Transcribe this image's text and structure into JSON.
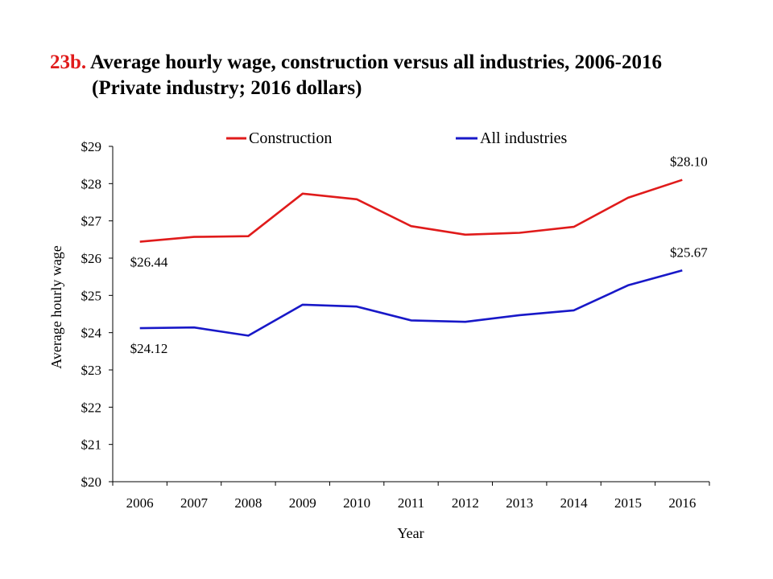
{
  "title": {
    "number": "23b.",
    "line1": "Average hourly wage, construction versus all industries, 2006-2016",
    "line2": "(Private industry; 2016 dollars)"
  },
  "chart_data": {
    "type": "line",
    "x": [
      "2006",
      "2007",
      "2008",
      "2009",
      "2010",
      "2011",
      "2012",
      "2013",
      "2014",
      "2015",
      "2016"
    ],
    "series": [
      {
        "name": "Construction",
        "color": "#e01b1b",
        "values": [
          26.44,
          26.57,
          26.59,
          27.73,
          27.58,
          26.86,
          26.63,
          26.68,
          26.84,
          27.62,
          28.1
        ]
      },
      {
        "name": "All industries",
        "color": "#1818c8",
        "values": [
          24.12,
          24.14,
          23.92,
          24.75,
          24.7,
          24.33,
          24.29,
          24.47,
          24.6,
          25.27,
          25.67
        ]
      }
    ],
    "data_labels": [
      {
        "series": 0,
        "point": 0,
        "text": "$26.44"
      },
      {
        "series": 0,
        "point": 10,
        "text": "$28.10"
      },
      {
        "series": 1,
        "point": 0,
        "text": "$24.12"
      },
      {
        "series": 1,
        "point": 10,
        "text": "$25.67"
      }
    ],
    "ylim": [
      20,
      29
    ],
    "yticks": [
      "$20",
      "$21",
      "$22",
      "$23",
      "$24",
      "$25",
      "$26",
      "$27",
      "$28",
      "$29"
    ],
    "xlabel": "Year",
    "ylabel": "Average  hourly wage",
    "legend_position": "top",
    "grid": false
  }
}
